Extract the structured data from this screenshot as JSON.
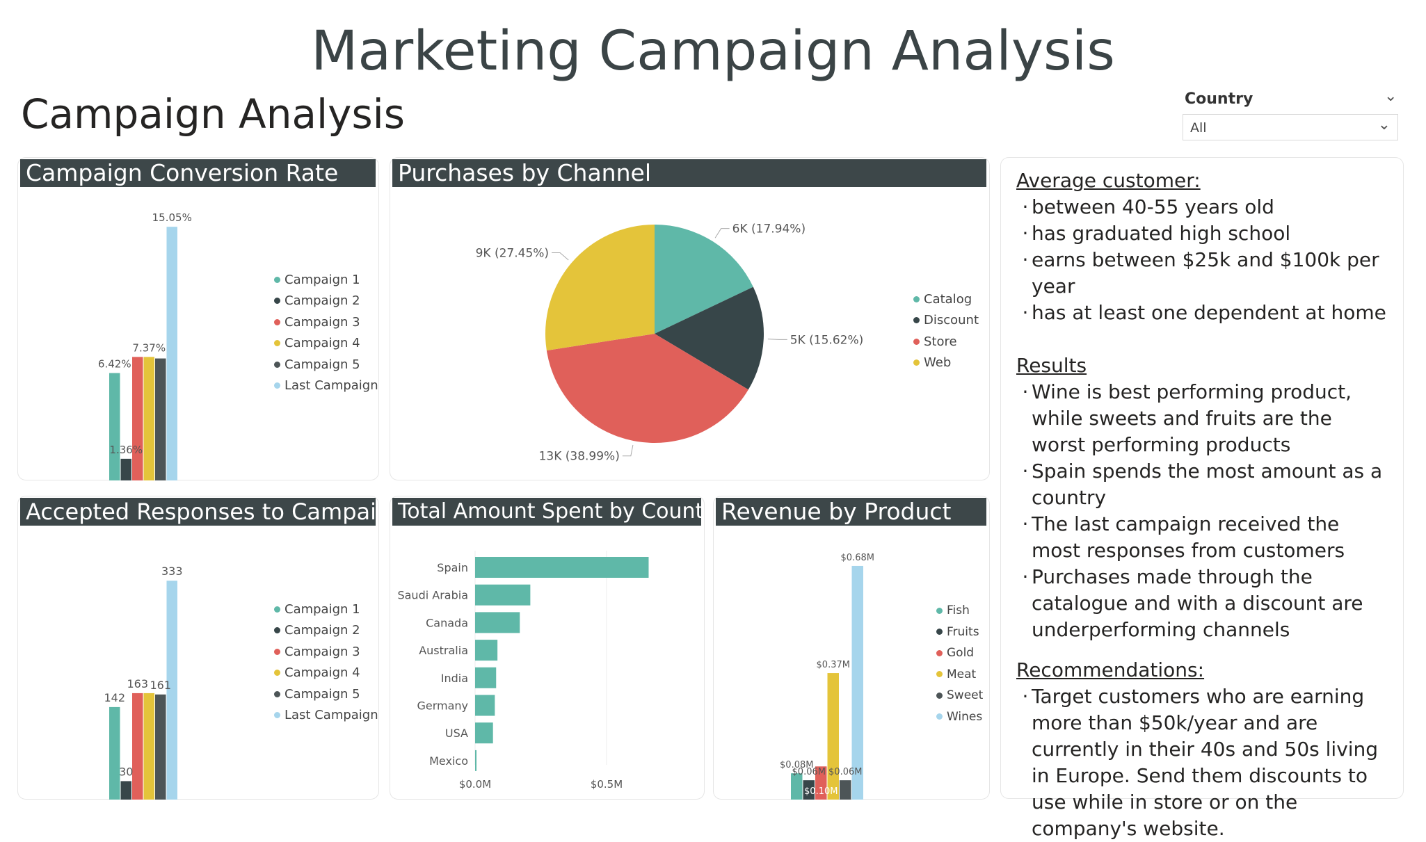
{
  "title": "Marketing Campaign Analysis",
  "section_title": "Campaign Analysis",
  "slicer": {
    "label": "Country",
    "value": "All"
  },
  "colors": {
    "teal": "#5fb8a8",
    "dark": "#374649",
    "red": "#e0605a",
    "yellow": "#e4c43a",
    "gray": "#4d5557",
    "lightblue": "#a6d5ec",
    "header": "#3d4749"
  },
  "conversion": {
    "title": "Campaign Conversion Rate"
  },
  "channel": {
    "title": "Purchases by Channel"
  },
  "responses": {
    "title": "Accepted Responses to Campaign"
  },
  "country_spend": {
    "title": "Total Amount Spent by Country"
  },
  "product_rev": {
    "title": "Revenue by Product"
  },
  "chart_data": [
    {
      "type": "bar",
      "title": "Campaign Conversion Rate",
      "series": [
        {
          "name": "Campaign 1",
          "value": 6.42,
          "label": "6.42%",
          "color": "#5fb8a8"
        },
        {
          "name": "Campaign 2",
          "value": 1.36,
          "label": "1.36%",
          "color": "#374649"
        },
        {
          "name": "Campaign 3",
          "value": 7.37,
          "label": "",
          "color": "#e0605a"
        },
        {
          "name": "Campaign 4",
          "value": 7.37,
          "label": "7.37%",
          "color": "#e4c43a"
        },
        {
          "name": "Campaign 5",
          "value": 7.28,
          "label": "",
          "color": "#4d5557"
        },
        {
          "name": "Last Campaign",
          "value": 15.05,
          "label": "15.05%",
          "color": "#a6d5ec"
        }
      ],
      "ylim": [
        0,
        16
      ],
      "legend_position": "right"
    },
    {
      "type": "pie",
      "title": "Purchases by Channel",
      "slices": [
        {
          "name": "Catalog",
          "value": 6000,
          "label": "6K (17.94%)",
          "color": "#5fb8a8"
        },
        {
          "name": "Discount",
          "value": 5000,
          "label": "5K (15.62%)",
          "color": "#374649"
        },
        {
          "name": "Store",
          "value": 13000,
          "label": "13K (38.99%)",
          "color": "#e0605a"
        },
        {
          "name": "Web",
          "value": 9000,
          "label": "9K (27.45%)",
          "color": "#e4c43a"
        }
      ],
      "percentages": [
        17.94,
        15.62,
        38.99,
        27.45
      ],
      "legend_position": "right"
    },
    {
      "type": "bar",
      "title": "Accepted Responses to Campaign",
      "series": [
        {
          "name": "Campaign 1",
          "value": 142,
          "label": "142",
          "color": "#5fb8a8"
        },
        {
          "name": "Campaign 2",
          "value": 30,
          "label": "30",
          "color": "#374649"
        },
        {
          "name": "Campaign 3",
          "value": 163,
          "label": "163",
          "color": "#e0605a"
        },
        {
          "name": "Campaign 4",
          "value": 163,
          "label": "",
          "color": "#e4c43a"
        },
        {
          "name": "Campaign 5",
          "value": 161,
          "label": "161",
          "color": "#4d5557"
        },
        {
          "name": "Last Campaign",
          "value": 333,
          "label": "333",
          "color": "#a6d5ec"
        }
      ],
      "ylim": [
        0,
        350
      ],
      "legend_position": "right"
    },
    {
      "type": "bar",
      "orientation": "horizontal",
      "title": "Total Amount Spent by Country",
      "categories": [
        "Spain",
        "Saudi Arabia",
        "Canada",
        "Australia",
        "India",
        "Germany",
        "USA",
        "Mexico"
      ],
      "values": [
        0.66,
        0.21,
        0.17,
        0.085,
        0.08,
        0.075,
        0.068,
        0.003
      ],
      "x_ticks": [
        "$0.0M",
        "$0.5M"
      ],
      "x_tick_values": [
        0,
        0.5
      ],
      "xlim": [
        0,
        0.75
      ],
      "color": "#5fb8a8"
    },
    {
      "type": "bar",
      "title": "Revenue by Product",
      "series": [
        {
          "name": "Fish",
          "value": 0.08,
          "label": "$0.08M",
          "color": "#5fb8a8"
        },
        {
          "name": "Fruits",
          "value": 0.06,
          "label": "$0.06M",
          "color": "#374649"
        },
        {
          "name": "Gold",
          "value": 0.1,
          "label": "$0.10M",
          "color": "#e0605a"
        },
        {
          "name": "Meat",
          "value": 0.37,
          "label": "$0.37M",
          "color": "#e4c43a"
        },
        {
          "name": "Sweet",
          "value": 0.06,
          "label": "$0.06M",
          "color": "#4d5557"
        },
        {
          "name": "Wines",
          "value": 0.68,
          "label": "$0.68M",
          "color": "#a6d5ec"
        }
      ],
      "ylim": [
        0,
        0.7
      ],
      "legend_position": "right"
    }
  ],
  "notes": {
    "average_title": "Average customer:",
    "average_items": [
      "between 40-55 years old",
      "has graduated high school",
      "earns between $25k and $100k per year",
      "has at least one dependent at home"
    ],
    "results_title": "Results",
    "results_items": [
      "Wine is best performing product, while sweets and fruits are the worst performing products",
      "Spain spends the most amount as a country",
      "The last campaign received the most responses from customers",
      "Purchases made through the catalogue and with a discount are underperforming channels"
    ],
    "rec_title": "Recommendations:",
    "rec_items": [
      "Target customers who are earning more than $50k/year and are currently in their 40s and 50s living in Europe. Send them discounts to use while in store or on the company's website."
    ]
  }
}
